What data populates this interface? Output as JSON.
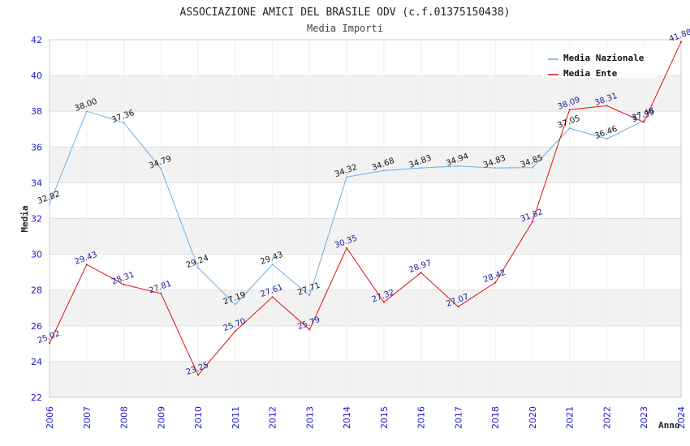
{
  "chart_data": {
    "type": "line",
    "title": "ASSOCIAZIONE AMICI DEL BRASILE ODV (c.f.01375150438)",
    "subtitle": "Media Importi",
    "xlabel": "Anno",
    "ylabel": "Media",
    "ylim": [
      22,
      42
    ],
    "yticks": [
      22,
      24,
      26,
      28,
      30,
      32,
      34,
      36,
      38,
      40,
      42
    ],
    "categories": [
      "2006",
      "2007",
      "2008",
      "2009",
      "2010",
      "2011",
      "2012",
      "2013",
      "2014",
      "2015",
      "2016",
      "2017",
      "2018",
      "2020",
      "2021",
      "2022",
      "2023",
      "2024"
    ],
    "series": [
      {
        "name": "Media Nazionale",
        "color": "#6aaee8",
        "label_color": "#111111",
        "values": [
          32.82,
          38.0,
          37.36,
          34.79,
          29.24,
          27.19,
          29.43,
          27.71,
          34.32,
          34.68,
          34.83,
          34.94,
          34.83,
          34.85,
          37.05,
          36.46,
          37.48,
          null
        ],
        "labels": [
          "32.82",
          "38.00",
          "37.36",
          "34.79",
          "29.24",
          "27.19",
          "29.43",
          "27.71",
          "34.32",
          "34.68",
          "34.83",
          "34.94",
          "34.83",
          "34.85",
          "37.05",
          "36.46",
          "37.48",
          ""
        ]
      },
      {
        "name": "Media Ente",
        "color": "#e01010",
        "label_color": "#1a1a99",
        "values": [
          25.02,
          29.43,
          28.31,
          27.81,
          23.25,
          25.7,
          27.61,
          25.79,
          30.35,
          27.32,
          28.97,
          27.07,
          28.42,
          31.82,
          38.09,
          38.31,
          37.39,
          41.88
        ],
        "labels": [
          "25.02",
          "29.43",
          "28.31",
          "27.81",
          "23.25",
          "25.70",
          "27.61",
          "25.79",
          "30.35",
          "27.32",
          "28.97",
          "27.07",
          "28.42",
          "31.82",
          "38.09",
          "38.31",
          "37.39",
          "41.88"
        ]
      }
    ],
    "grid": true,
    "legend_position": "top-right"
  }
}
